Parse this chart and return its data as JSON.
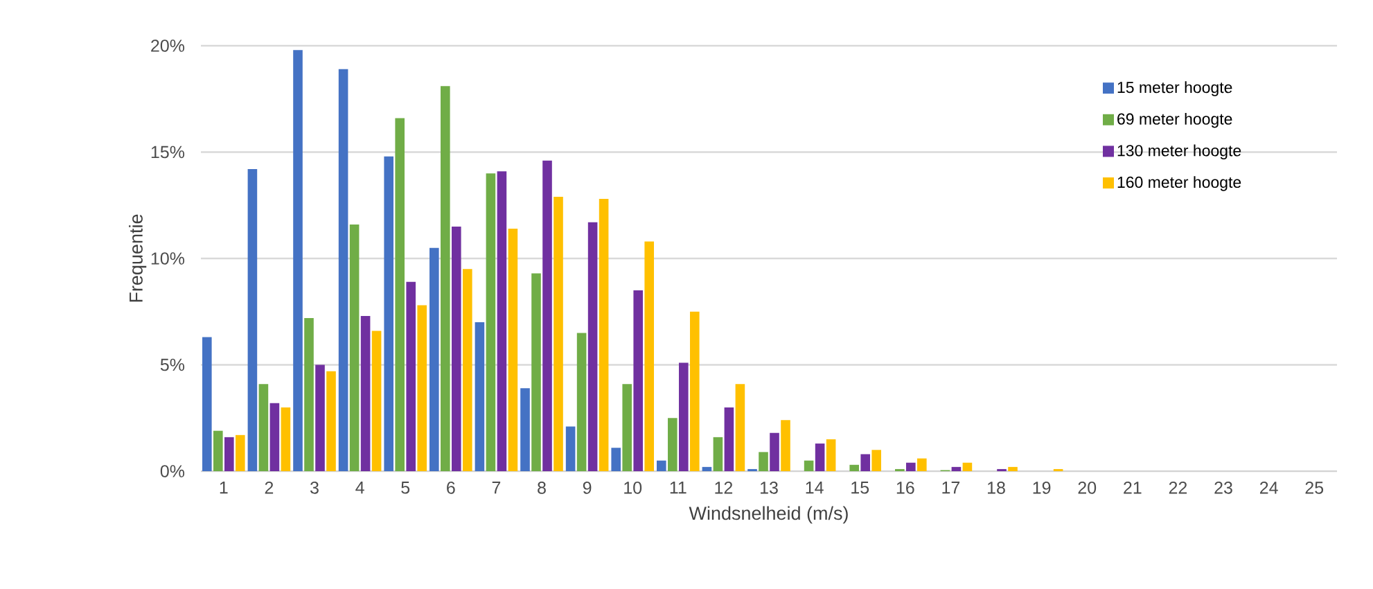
{
  "chart_data": {
    "type": "bar",
    "xlabel": "Windsnelheid (m/s)",
    "ylabel": "Frequentie",
    "categories": [
      "1",
      "2",
      "3",
      "4",
      "5",
      "6",
      "7",
      "8",
      "9",
      "10",
      "11",
      "12",
      "13",
      "14",
      "15",
      "16",
      "17",
      "18",
      "19",
      "20",
      "21",
      "22",
      "23",
      "24",
      "25"
    ],
    "series": [
      {
        "name": "15 meter hoogte",
        "color": "#4472c4",
        "values": [
          6.3,
          14.2,
          19.8,
          18.9,
          14.8,
          10.5,
          7.0,
          3.9,
          2.1,
          1.1,
          0.5,
          0.2,
          0.1,
          0,
          0,
          0,
          0,
          0,
          0,
          0,
          0,
          0,
          0,
          0,
          0
        ]
      },
      {
        "name": "69 meter hoogte",
        "color": "#70ad47",
        "values": [
          1.9,
          4.1,
          7.2,
          11.6,
          16.6,
          18.1,
          14.0,
          9.3,
          6.5,
          4.1,
          2.5,
          1.6,
          0.9,
          0.5,
          0.3,
          0.1,
          0.05,
          0,
          0,
          0,
          0,
          0,
          0,
          0,
          0
        ]
      },
      {
        "name": "130 meter hoogte",
        "color": "#7030a0",
        "values": [
          1.6,
          3.2,
          5.0,
          7.3,
          8.9,
          11.5,
          14.1,
          14.6,
          11.7,
          8.5,
          5.1,
          3.0,
          1.8,
          1.3,
          0.8,
          0.4,
          0.2,
          0.1,
          0,
          0,
          0,
          0,
          0,
          0,
          0
        ]
      },
      {
        "name": "160 meter hoogte",
        "color": "#ffc000",
        "values": [
          1.7,
          3.0,
          4.7,
          6.6,
          7.8,
          9.5,
          11.4,
          12.9,
          12.8,
          10.8,
          7.5,
          4.1,
          2.4,
          1.5,
          1.0,
          0.6,
          0.4,
          0.2,
          0.1,
          0,
          0,
          0,
          0,
          0,
          0
        ]
      }
    ],
    "ylim": [
      0,
      20
    ],
    "yticks": [
      {
        "value": 0,
        "label": "0%"
      },
      {
        "value": 5,
        "label": "5%"
      },
      {
        "value": 10,
        "label": "10%"
      },
      {
        "value": 15,
        "label": "15%"
      },
      {
        "value": 20,
        "label": "20%"
      }
    ],
    "grid": "y",
    "legend": "top right"
  }
}
